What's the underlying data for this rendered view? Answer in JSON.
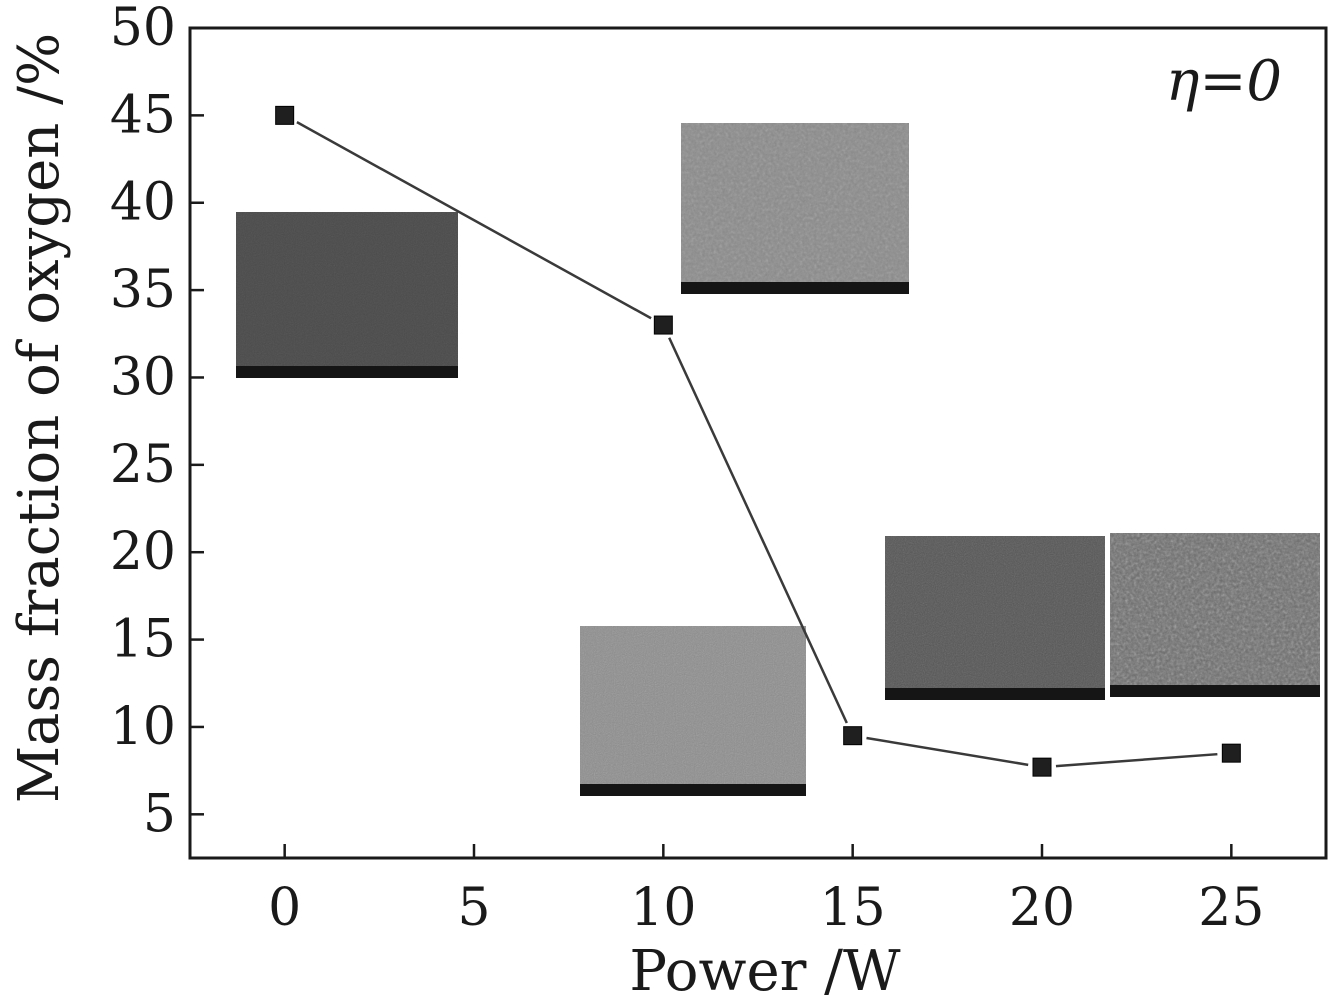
{
  "chart_data": {
    "type": "line",
    "title": "",
    "xlabel": "Power /W",
    "ylabel": "Mass fraction of oxygen /%",
    "annotation": "η=0",
    "xlim": [
      -2.5,
      27.5
    ],
    "ylim": [
      2.5,
      50
    ],
    "xticks": [
      0,
      5,
      10,
      15,
      20,
      25
    ],
    "yticks": [
      5,
      10,
      15,
      20,
      25,
      30,
      35,
      40,
      45,
      50
    ],
    "grid": false,
    "marker": "square",
    "line_color": "#3a3a3a",
    "marker_color": "#1f1f1f",
    "series": [
      {
        "x": [
          0,
          10,
          15,
          20,
          25
        ],
        "values": [
          45,
          33,
          9.5,
          7.7,
          8.5
        ]
      }
    ],
    "insets": [
      {
        "kind": "SEM micrograph",
        "near_x": 0
      },
      {
        "kind": "SEM micrograph",
        "near_x": 10
      },
      {
        "kind": "SEM micrograph",
        "near_x": 15
      },
      {
        "kind": "SEM micrograph",
        "near_x": 20
      },
      {
        "kind": "SEM micrograph",
        "near_x": 25
      }
    ]
  }
}
